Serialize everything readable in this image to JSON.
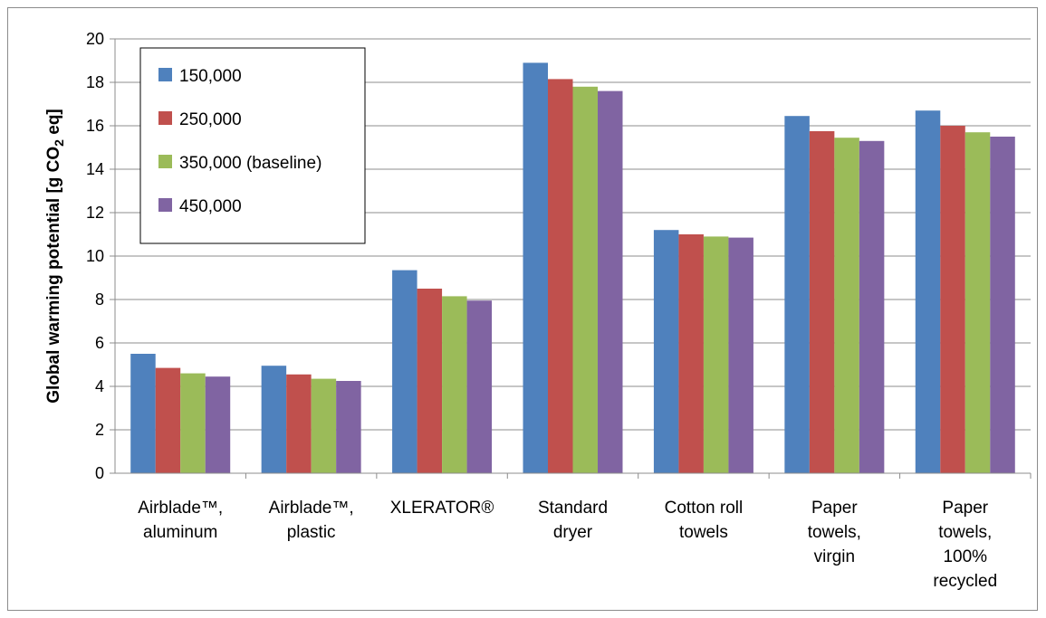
{
  "chart_data": {
    "type": "bar",
    "title": "",
    "xlabel": "",
    "ylabel": {
      "main": "Global warming potential [g CO",
      "sub": "2",
      "tail": " eq]"
    },
    "ylim": [
      0,
      20
    ],
    "yticks": [
      "0",
      "2",
      "4",
      "6",
      "8",
      "10",
      "12",
      "14",
      "16",
      "18",
      "20"
    ],
    "grid": true,
    "legend_position": "top-left",
    "categories": [
      [
        "Airblade™,",
        "aluminum"
      ],
      [
        "Airblade™,",
        "plastic"
      ],
      [
        "XLERATOR®"
      ],
      [
        "Standard",
        "dryer"
      ],
      [
        "Cotton roll",
        "towels"
      ],
      [
        "Paper",
        "towels,",
        "virgin"
      ],
      [
        "Paper",
        "towels,",
        "100%",
        "recycled"
      ]
    ],
    "series": [
      {
        "name": "150,000",
        "color": "#4f81bd",
        "values": [
          5.5,
          4.95,
          9.35,
          18.9,
          11.2,
          16.45,
          16.7
        ]
      },
      {
        "name": "250,000",
        "color": "#c0504d",
        "values": [
          4.85,
          4.55,
          8.5,
          18.15,
          11.0,
          15.75,
          16.0
        ]
      },
      {
        "name": "350,000 (baseline)",
        "color": "#9bbb59",
        "values": [
          4.6,
          4.35,
          8.15,
          17.8,
          10.9,
          15.45,
          15.7
        ]
      },
      {
        "name": "450,000",
        "color": "#8064a2",
        "values": [
          4.45,
          4.25,
          7.95,
          17.6,
          10.85,
          15.3,
          15.5
        ]
      }
    ]
  }
}
